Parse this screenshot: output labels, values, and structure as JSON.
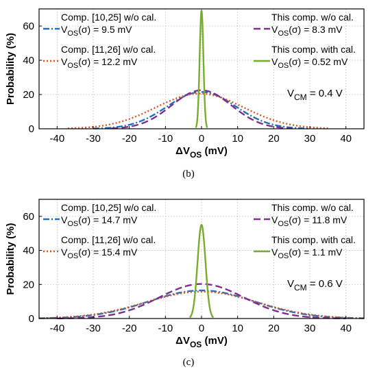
{
  "chart_data": [
    {
      "type": "line",
      "caption": "(b)",
      "xlabel": "ΔV",
      "xlabel_sub": "OS",
      "xlabel_unit": " (mV)",
      "ylabel": "Probability (%)",
      "xlim": [
        -45,
        45
      ],
      "ylim": [
        0,
        70
      ],
      "xticks": [
        -40,
        -30,
        -20,
        -10,
        0,
        10,
        20,
        30,
        40
      ],
      "yticks": [
        0,
        20,
        40,
        60
      ],
      "grid": true,
      "annotation": {
        "main": "V",
        "sub": "CM",
        "tail": " = 0.4 V"
      },
      "series": [
        {
          "name": "Comp. [10,25] w/o cal.",
          "sigma_text": "(σ) = 9.5 mV",
          "mu": 0,
          "sigma": 9.5,
          "peak": 21.5,
          "color": "#1f6fbf",
          "dash": "9 3 2 3",
          "range": [
            -30,
            30
          ]
        },
        {
          "name": "Comp. [11,26] w/o cal.",
          "sigma_text": "(σ) = 12.2 mV",
          "mu": -0.5,
          "sigma": 12.2,
          "peak": 20.5,
          "color": "#d9531e",
          "dash": "2 3",
          "range": [
            -37,
            35
          ]
        },
        {
          "name": "This comp. w/o cal.",
          "sigma_text": "(σ) = 8.3 mV",
          "mu": 0,
          "sigma": 8.3,
          "peak": 22.5,
          "color": "#7e2f8e",
          "dash": "10 5",
          "range": [
            -25,
            25
          ]
        },
        {
          "name": "This comp. with cal.",
          "sigma_text": "(σ) = 0.52 mV",
          "mu": 0,
          "sigma": 0.52,
          "peak": 69,
          "color": "#77ac30",
          "dash": "",
          "range": [
            -1.6,
            1.6
          ]
        }
      ]
    },
    {
      "type": "line",
      "caption": "(c)",
      "xlabel": "ΔV",
      "xlabel_sub": "OS",
      "xlabel_unit": " (mV)",
      "ylabel": "Probability (%)",
      "xlim": [
        -45,
        45
      ],
      "ylim": [
        0,
        70
      ],
      "xticks": [
        -40,
        -30,
        -20,
        -10,
        0,
        10,
        20,
        30,
        40
      ],
      "yticks": [
        0,
        20,
        40,
        60
      ],
      "grid": true,
      "annotation": {
        "main": "V",
        "sub": "CM",
        "tail": " = 0.6 V"
      },
      "series": [
        {
          "name": "Comp. [10,25] w/o cal.",
          "sigma_text": "(σ) = 14.7 mV",
          "mu": 0,
          "sigma": 14.7,
          "peak": 16.5,
          "color": "#1f6fbf",
          "dash": "9 3 2 3",
          "range": [
            -45,
            45
          ]
        },
        {
          "name": "Comp. [11,26] w/o cal.",
          "sigma_text": "(σ) = 15.4 mV",
          "mu": 0,
          "sigma": 15.4,
          "peak": 15.8,
          "color": "#d9531e",
          "dash": "2 3",
          "range": [
            -45,
            45
          ]
        },
        {
          "name": "This comp. w/o cal.",
          "sigma_text": "(σ) = 11.8 mV",
          "mu": 0,
          "sigma": 11.8,
          "peak": 20.3,
          "color": "#7e2f8e",
          "dash": "10 5",
          "range": [
            -40,
            40
          ]
        },
        {
          "name": "This comp. with cal.",
          "sigma_text": "(σ) = 1.1 mV",
          "mu": 0,
          "sigma": 1.1,
          "peak": 55,
          "color": "#77ac30",
          "dash": "",
          "range": [
            -3.3,
            3.3
          ]
        }
      ]
    }
  ]
}
